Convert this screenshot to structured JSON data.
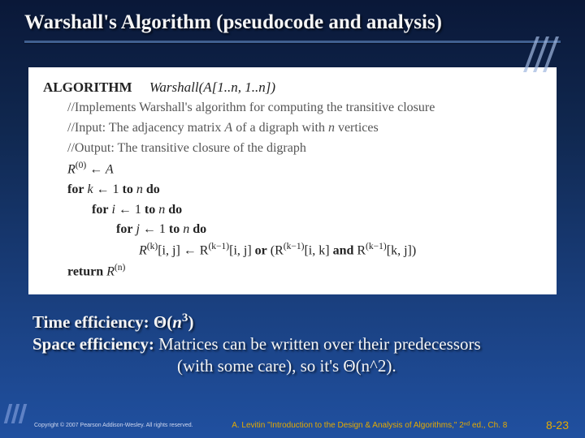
{
  "title": "Warshall's Algorithm (pseudocode and analysis)",
  "algorithm": {
    "header_kw": "ALGORITHM",
    "header_name": "Warshall(A[1..n, 1..n])",
    "comment1": "//Implements Warshall's algorithm for computing the transitive closure",
    "comment2": "//Input: The adjacency matrix A of a digraph with n vertices",
    "comment3": "//Output: The transitive closure of the digraph",
    "init_lhs": "R",
    "init_sup": "(0)",
    "init_assign": " ← A",
    "for_k": "for k ← 1 to n do",
    "for_i": "for i ← 1 to n do",
    "for_j": "for j ← 1 to n do",
    "body_a": "R",
    "body_sup_k": "(k)",
    "body_idx1": "[i, j] ← R",
    "body_sup_km1a": "(k−1)",
    "body_idx2": "[i, j] ",
    "body_or": "or",
    "body_open": " (R",
    "body_sup_km1b": "(k−1)",
    "body_idx3": "[i, k] ",
    "body_and": "and",
    "body_r3": " R",
    "body_sup_km1c": "(k−1)",
    "body_idx4": "[k, j])",
    "return_kw": "return ",
    "return_r": "R",
    "return_sup": "(n)"
  },
  "analysis": {
    "time_label": "Time efficiency: ",
    "time_value": "Θ(n³)",
    "space_label": "Space efficiency: ",
    "space_line1": "Matrices can be written over their predecessors",
    "space_line2": "(with some care), so it's Θ(n^2)."
  },
  "footer": {
    "copyright": "Copyright © 2007 Pearson Addison-Wesley. All rights reserved.",
    "center": "A. Levitin \"Introduction to the Design & Analysis of Algorithms,\" 2ⁿᵈ ed., Ch. 8",
    "page": "8-23"
  }
}
